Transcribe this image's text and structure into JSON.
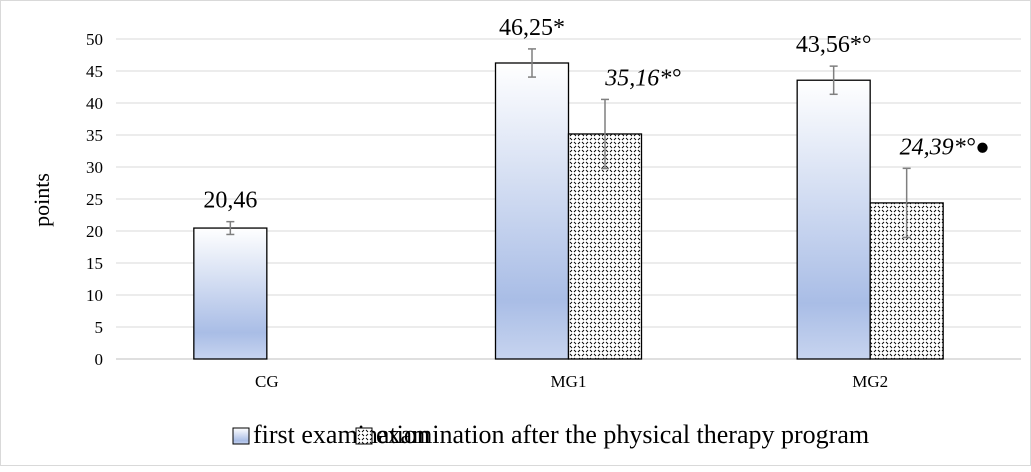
{
  "chart_data": {
    "type": "bar",
    "ylabel": "points",
    "ylim": [
      0,
      50
    ],
    "yticks": [
      0,
      5,
      10,
      15,
      20,
      25,
      30,
      35,
      40,
      45,
      50
    ],
    "grid": true,
    "legend_position": "bottom",
    "categories": [
      "CG",
      "MG1",
      "MG2"
    ],
    "series": [
      {
        "name": "first examination",
        "values": [
          20.46,
          46.25,
          43.56
        ],
        "errors": [
          1.0,
          2.2,
          2.2
        ],
        "labels": [
          {
            "text": "20,46",
            "italic": false
          },
          {
            "text": "46,25*",
            "italic": false
          },
          {
            "text": "43,56*°",
            "italic": false
          }
        ]
      },
      {
        "name": "examination after the physical therapy program",
        "values": [
          null,
          35.16,
          24.39
        ],
        "errors": [
          null,
          5.4,
          5.4
        ],
        "labels": [
          null,
          {
            "text": "35,16*°",
            "italic": true
          },
          {
            "text": "24,39*°●",
            "italic": true
          }
        ]
      }
    ]
  }
}
